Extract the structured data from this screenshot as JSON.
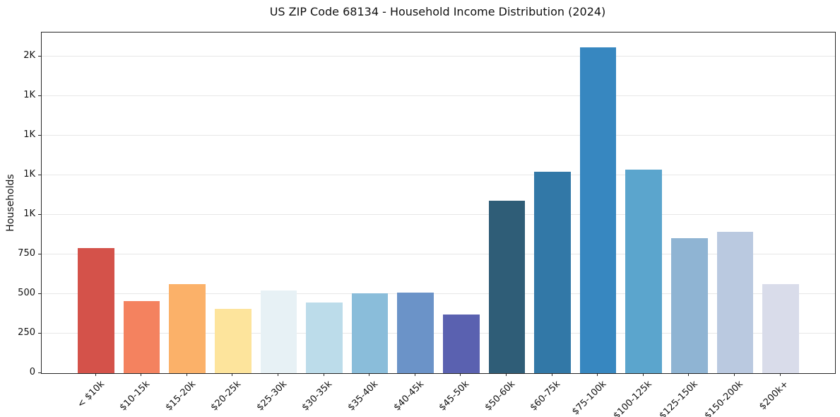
{
  "chart_data": {
    "type": "bar",
    "title": "US ZIP Code 68134 - Household Income Distribution (2024)",
    "xlabel": "",
    "ylabel": "Households",
    "ylim": [
      0,
      2150
    ],
    "grid": "horizontal-only",
    "legend": "none",
    "xticklabel_rotation": 45,
    "categories": [
      "< $10k",
      "$10-15k",
      "$15-20k",
      "$20-25k",
      "$25-30k",
      "$30-35k",
      "$35-40k",
      "$40-45k",
      "$45-50k",
      "$50-60k",
      "$60-75k",
      "$75-100k",
      "$100-125k",
      "$125-150k",
      "$150-200k",
      "$200k+"
    ],
    "values": [
      790,
      455,
      560,
      405,
      520,
      445,
      505,
      510,
      370,
      1090,
      1270,
      2055,
      1285,
      850,
      890,
      560
    ],
    "bar_colors": [
      "#d4524a",
      "#f4825f",
      "#fbb169",
      "#fde49c",
      "#e7f1f5",
      "#bcdcea",
      "#8abdda",
      "#6b93c8",
      "#5a61b0",
      "#2f5d77",
      "#3278a7",
      "#3787c0",
      "#5ba5cd",
      "#8fb4d3",
      "#bac9e0",
      "#d9dcea"
    ],
    "yticks": [
      {
        "value": 0,
        "label": "0"
      },
      {
        "value": 250,
        "label": "250"
      },
      {
        "value": 500,
        "label": "500"
      },
      {
        "value": 750,
        "label": "750"
      },
      {
        "value": 1000,
        "label": "1K"
      },
      {
        "value": 1250,
        "label": "1K"
      },
      {
        "value": 1500,
        "label": "1K"
      },
      {
        "value": 1750,
        "label": "1K"
      },
      {
        "value": 2000,
        "label": "2K"
      }
    ]
  }
}
